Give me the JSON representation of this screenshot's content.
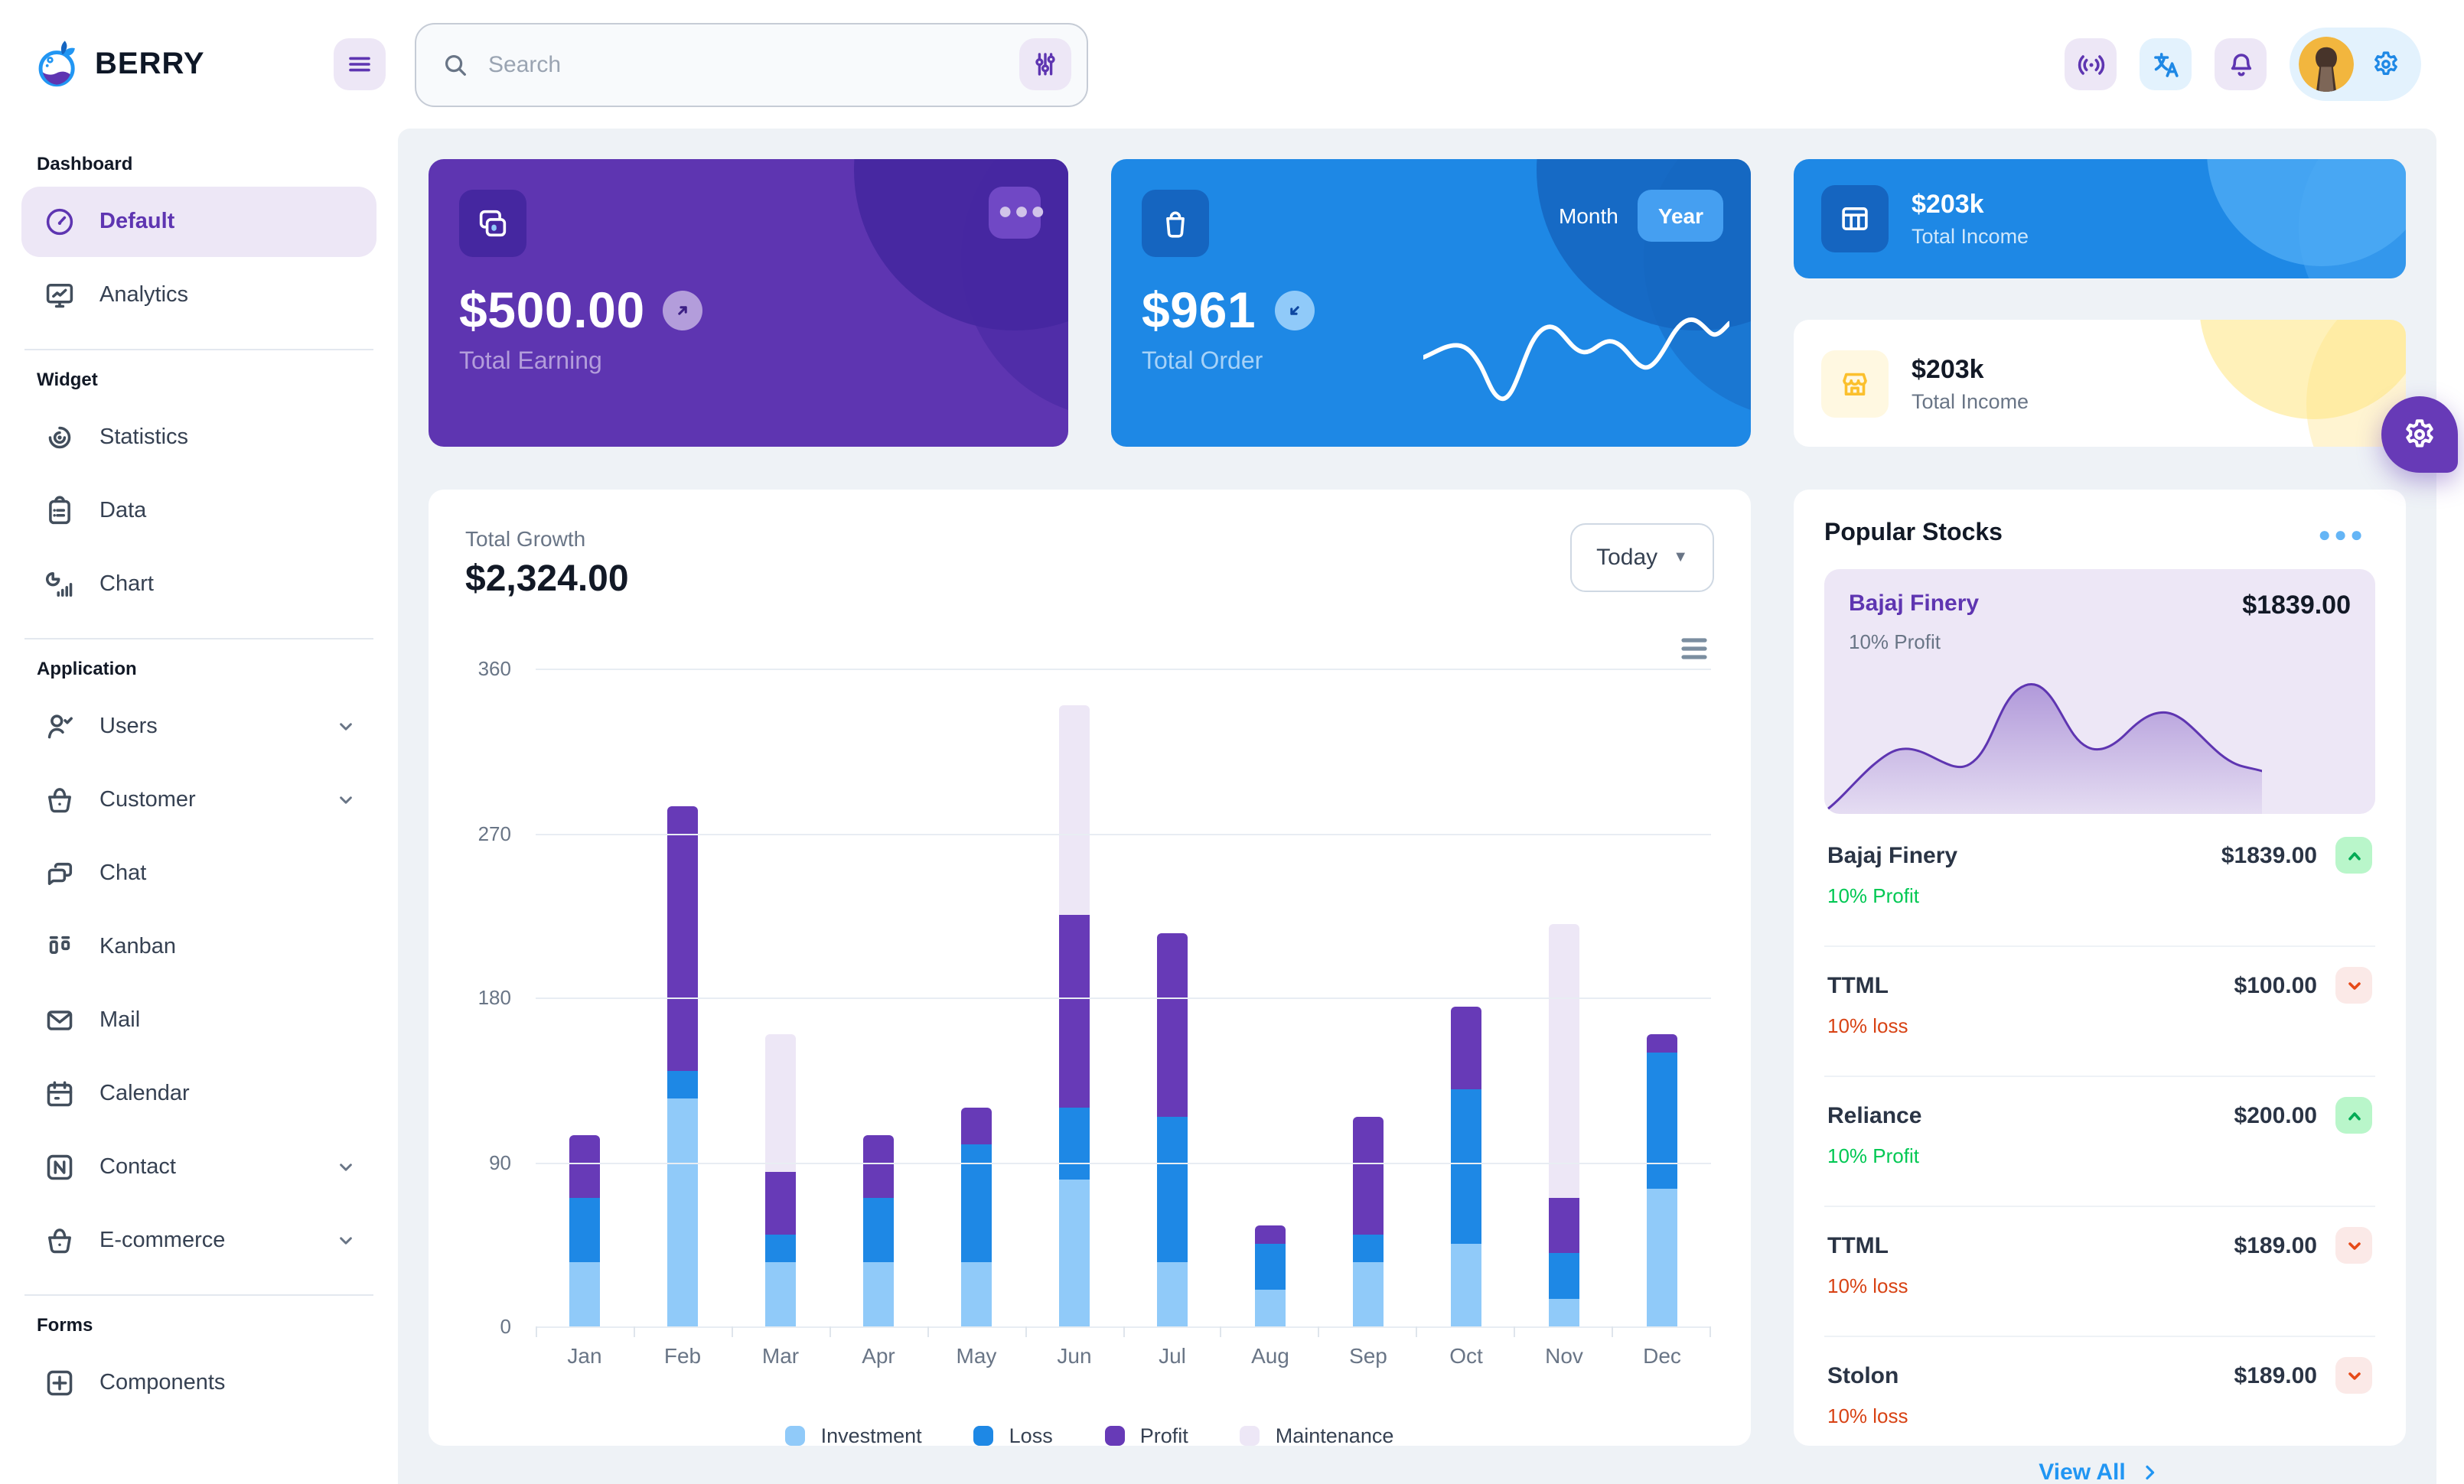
{
  "app": {
    "brand": "BERRY"
  },
  "header": {
    "search_placeholder": "Search",
    "icons": [
      "hamburger-menu-icon",
      "search-icon",
      "filter-sliders-icon",
      "broadcast-icon",
      "translate-icon",
      "notification-bell-icon",
      "settings-gear-icon",
      "avatar"
    ]
  },
  "sidebar": {
    "sections": [
      {
        "title": "Dashboard",
        "items": [
          {
            "label": "Default",
            "icon": "gauge",
            "active": true
          },
          {
            "label": "Analytics",
            "icon": "analytics"
          }
        ]
      },
      {
        "title": "Widget",
        "items": [
          {
            "label": "Statistics",
            "icon": "statistics"
          },
          {
            "label": "Data",
            "icon": "clipboard"
          },
          {
            "label": "Chart",
            "icon": "chartbar"
          }
        ]
      },
      {
        "title": "Application",
        "items": [
          {
            "label": "Users",
            "icon": "usercheck",
            "expandable": true
          },
          {
            "label": "Customer",
            "icon": "basket",
            "expandable": true
          },
          {
            "label": "Chat",
            "icon": "chat"
          },
          {
            "label": "Kanban",
            "icon": "kanban"
          },
          {
            "label": "Mail",
            "icon": "mail"
          },
          {
            "label": "Calendar",
            "icon": "calendar"
          },
          {
            "label": "Contact",
            "icon": "contact",
            "expandable": true
          },
          {
            "label": "E-commerce",
            "icon": "basket",
            "expandable": true
          }
        ]
      },
      {
        "title": "Forms",
        "items": [
          {
            "label": "Components",
            "icon": "components",
            "partially_visible": true
          }
        ]
      }
    ]
  },
  "summary_cards": {
    "earning": {
      "amount": "$500.00",
      "label": "Total Earning",
      "trend": "up",
      "bg_color": "#5e35b1"
    },
    "order": {
      "amount": "$961",
      "label": "Total Order",
      "trend": "down",
      "toggle_options": [
        "Month",
        "Year"
      ],
      "selected_toggle": "Year",
      "bg_color": "#1e88e5"
    },
    "income_primary": {
      "amount": "$203k",
      "label": "Total Income",
      "bg_color": "#1e88e5"
    },
    "income_warning": {
      "amount": "$203k",
      "label": "Total Income",
      "accent_color": "#fbc02d"
    }
  },
  "growth": {
    "label": "Total Growth",
    "amount": "$2,324.00",
    "period_selector": "Today",
    "chart_data": {
      "type": "bar",
      "stacked": true,
      "categories": [
        "Jan",
        "Feb",
        "Mar",
        "Apr",
        "May",
        "Jun",
        "Jul",
        "Aug",
        "Sep",
        "Oct",
        "Nov",
        "Dec"
      ],
      "series": [
        {
          "name": "Investment",
          "color": "#90caf9",
          "values": [
            35,
            125,
            35,
            35,
            35,
            80,
            35,
            20,
            35,
            45,
            15,
            75
          ]
        },
        {
          "name": "Loss",
          "color": "#1e88e5",
          "values": [
            35,
            15,
            15,
            35,
            65,
            40,
            80,
            25,
            15,
            85,
            25,
            75
          ]
        },
        {
          "name": "Profit",
          "color": "#673ab7",
          "values": [
            35,
            145,
            35,
            35,
            20,
            105,
            100,
            10,
            65,
            45,
            30,
            10
          ]
        },
        {
          "name": "Maintenance",
          "color": "#ede7f6",
          "values": [
            0,
            0,
            75,
            0,
            0,
            115,
            0,
            0,
            0,
            0,
            150,
            0
          ]
        }
      ],
      "ylim": [
        0,
        360
      ],
      "yticks": [
        0,
        90,
        180,
        270,
        360
      ],
      "grid": true,
      "legend_position": "bottom"
    }
  },
  "stocks": {
    "title": "Popular Stocks",
    "featured": {
      "name": "Bajaj Finery",
      "price": "$1839.00",
      "change": "10% Profit"
    },
    "items": [
      {
        "name": "Bajaj Finery",
        "price": "$1839.00",
        "change": "10% Profit",
        "direction": "up"
      },
      {
        "name": "TTML",
        "price": "$100.00",
        "change": "10% loss",
        "direction": "down"
      },
      {
        "name": "Reliance",
        "price": "$200.00",
        "change": "10% Profit",
        "direction": "up"
      },
      {
        "name": "TTML",
        "price": "$189.00",
        "change": "10% loss",
        "direction": "down"
      },
      {
        "name": "Stolon",
        "price": "$189.00",
        "change": "10% loss",
        "direction": "down"
      }
    ],
    "view_all_label": "View All",
    "colors": {
      "profit_text": "#00c853",
      "loss_text": "#d84315",
      "up_badge_bg": "#b9f6ca",
      "down_badge_bg": "#fbe9e7"
    }
  }
}
